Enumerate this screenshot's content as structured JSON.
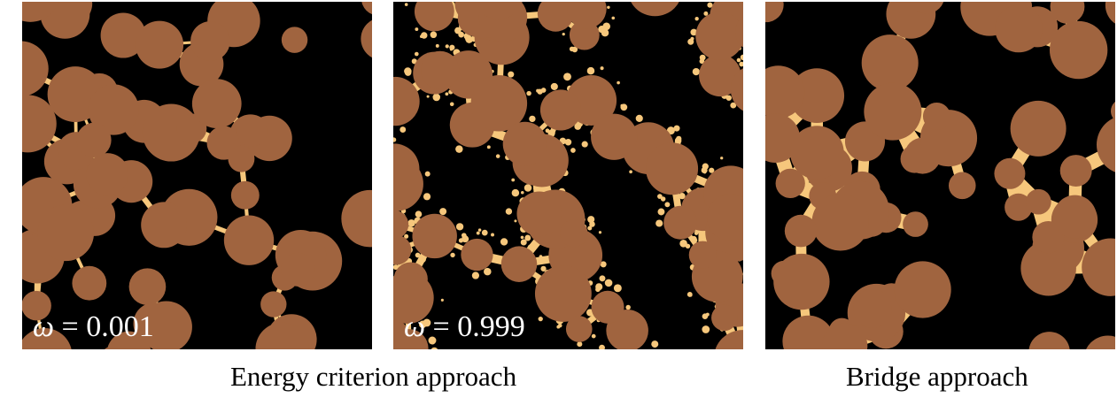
{
  "panels": [
    {
      "id": "panel-1",
      "label_symbol": "ω",
      "label_value": "= 0.001",
      "seed": 11,
      "bridge": "low"
    },
    {
      "id": "panel-2",
      "label_symbol": "ω",
      "label_value": "= 0.999",
      "seed": 23,
      "bridge": "speckle"
    },
    {
      "id": "panel-3",
      "label_symbol": "",
      "label_value": "",
      "seed": 37,
      "bridge": "neck"
    }
  ],
  "captions": {
    "energy": "Energy criterion approach",
    "bridge": "Bridge approach"
  },
  "colors": {
    "background": "#000000",
    "particle": "#a0643f",
    "bridge": "#f6c77c"
  }
}
